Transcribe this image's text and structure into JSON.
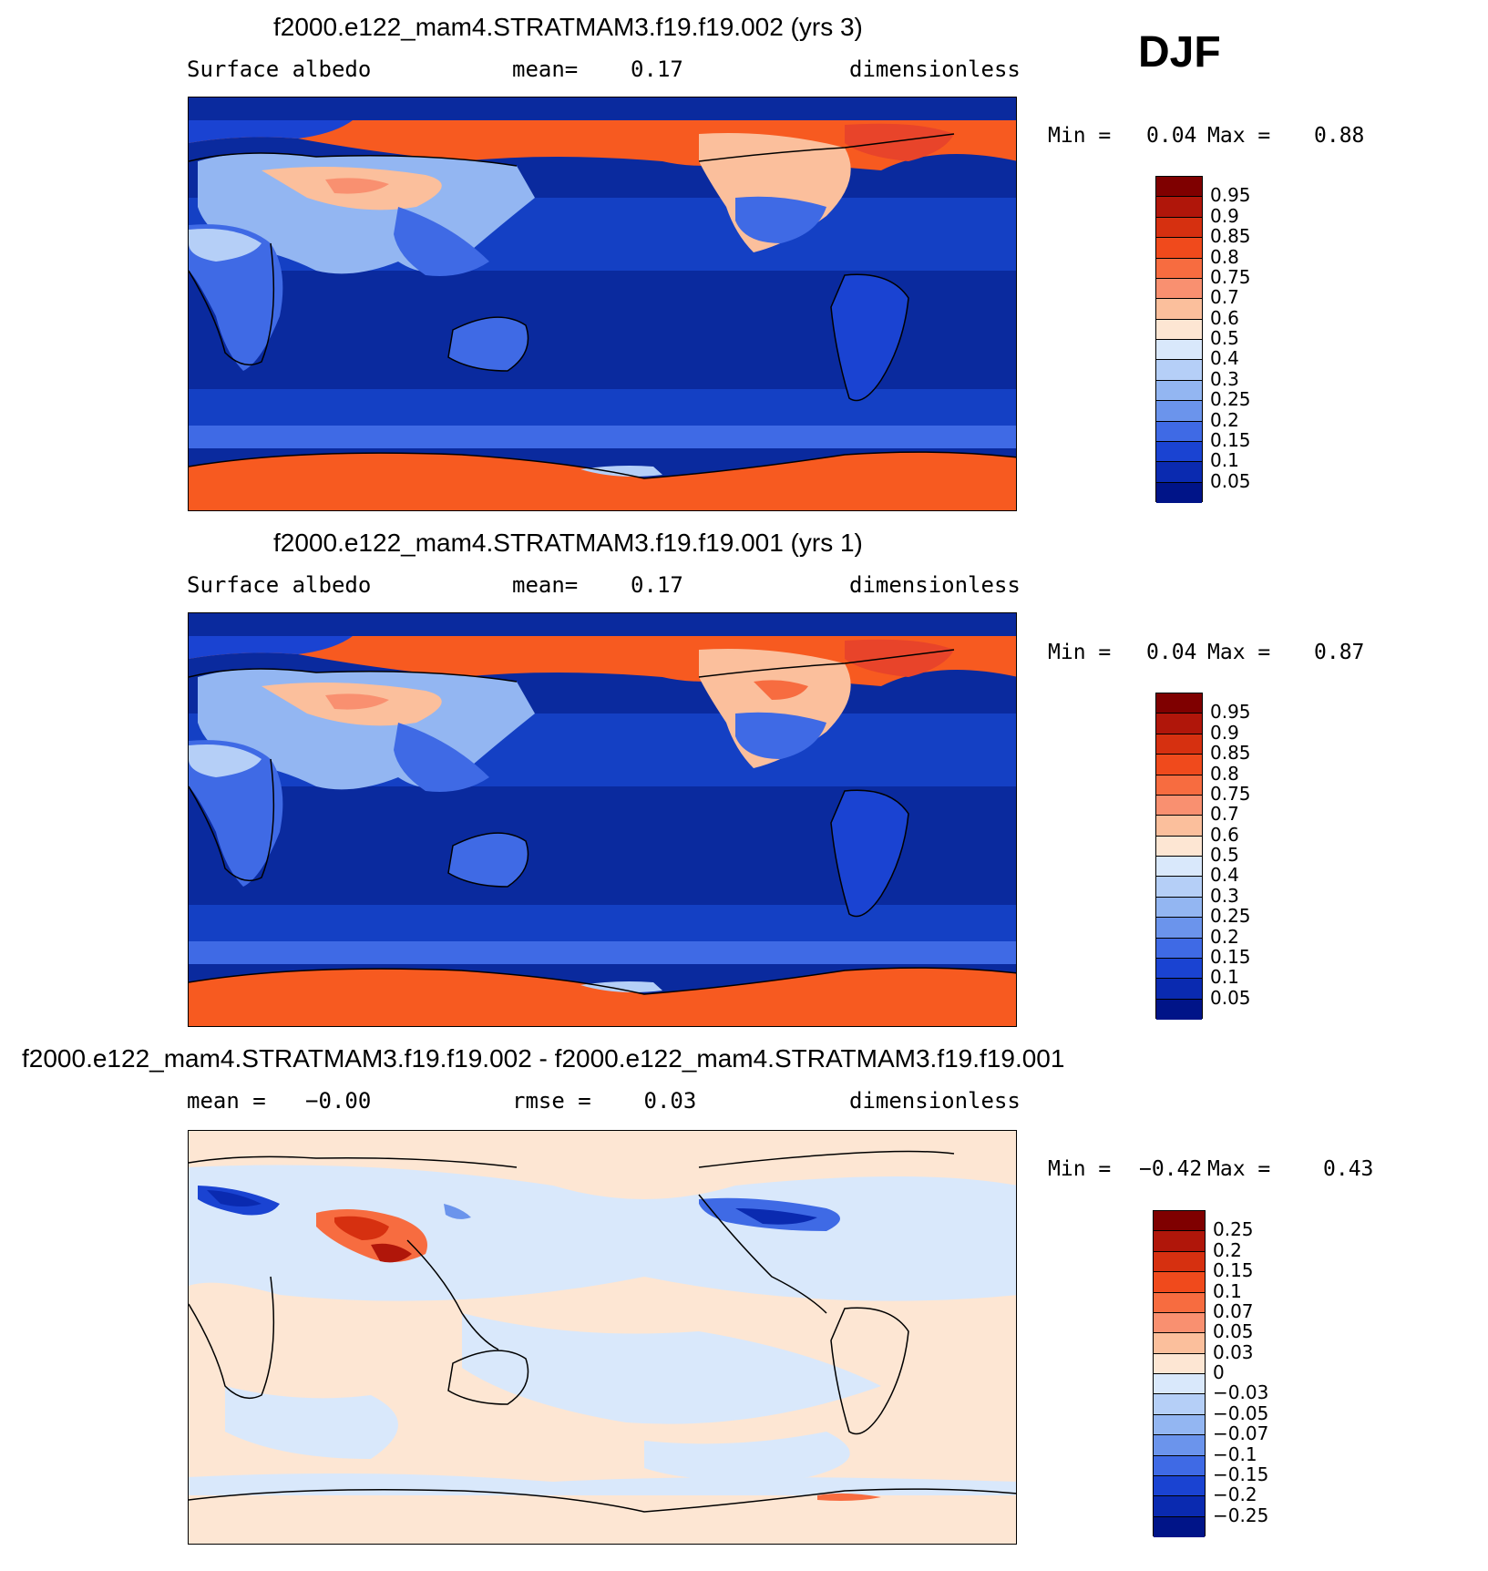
{
  "season": "DJF",
  "panels": [
    {
      "title": "f2000.e122_mam4.STRATMAM3.f19.f19.002 (yrs 3)",
      "left": "Surface albedo",
      "center": "mean=    0.17",
      "right": "dimensionless",
      "min_label": "Min =",
      "min_value": "0.04",
      "max_label": "Max =",
      "max_value": "0.88",
      "legend": [
        "0.95",
        "0.9",
        "0.85",
        "0.8",
        "0.75",
        "0.7",
        "0.6",
        "0.5",
        "0.4",
        "0.3",
        "0.25",
        "0.2",
        "0.15",
        "0.1",
        "0.05"
      ]
    },
    {
      "title": "f2000.e122_mam4.STRATMAM3.f19.f19.001 (yrs 1)",
      "left": "Surface albedo",
      "center": "mean=    0.17",
      "right": "dimensionless",
      "min_label": "Min =",
      "min_value": "0.04",
      "max_label": "Max =",
      "max_value": "0.87",
      "legend": [
        "0.95",
        "0.9",
        "0.85",
        "0.8",
        "0.75",
        "0.7",
        "0.6",
        "0.5",
        "0.4",
        "0.3",
        "0.25",
        "0.2",
        "0.15",
        "0.1",
        "0.05"
      ]
    },
    {
      "title": "f2000.e122_mam4.STRATMAM3.f19.f19.002 - f2000.e122_mam4.STRATMAM3.f19.f19.001",
      "left": "mean =   −0.00",
      "center": "rmse =    0.03",
      "right": "dimensionless",
      "min_label": "Min =",
      "min_value": "−0.42",
      "max_label": "Max =",
      "max_value": "0.43",
      "legend": [
        "0.25",
        "0.2",
        "0.15",
        "0.1",
        "0.07",
        "0.05",
        "0.03",
        "0",
        "−0.03",
        "−0.05",
        "−0.07",
        "−0.1",
        "−0.15",
        "−0.2",
        "−0.25"
      ]
    }
  ],
  "colors": {
    "abs_scale": [
      "#7f0000",
      "#b0160a",
      "#d63010",
      "#f04a1c",
      "#f76c40",
      "#f99070",
      "#fbbf9c",
      "#fde6d3",
      "#d9e8fb",
      "#b5cff7",
      "#93b6f2",
      "#6b94ec",
      "#3f6ae5",
      "#1a43d2",
      "#0a2ab0",
      "#001488"
    ],
    "diff_scale": [
      "#7f0000",
      "#b0160a",
      "#d63010",
      "#f04a1c",
      "#f76c40",
      "#f99070",
      "#fbbf9c",
      "#fde6d3",
      "#d9e8fb",
      "#b5cff7",
      "#93b6f2",
      "#6b94ec",
      "#3f6ae5",
      "#1a43d2",
      "#0a2ab0",
      "#001488"
    ],
    "ocean_deep": "#0a2a9e",
    "ocean_mid": "#1440c4",
    "ice": "#f75a20",
    "land_mid": "#2e5fe0",
    "diff_bg": "#fde6d3",
    "diff_light_blue": "#d9e8fb"
  }
}
